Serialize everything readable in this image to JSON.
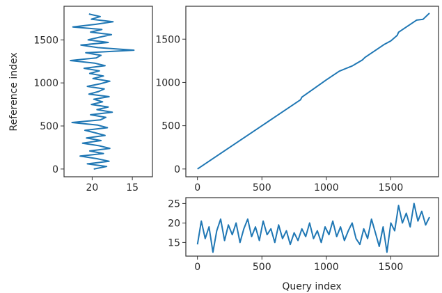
{
  "colors": {
    "series": "#1f77b4",
    "axis": "#333333",
    "background": "#ffffff"
  },
  "chart_data": [
    {
      "id": "left",
      "type": "line",
      "orientation": "vertical",
      "title": "",
      "xlabel": "",
      "ylabel": "Reference index",
      "xlim": [
        12.5,
        23.5
      ],
      "ylim": [
        -90,
        1890
      ],
      "x_inverted": true,
      "xticks": [
        20,
        15
      ],
      "yticks": [
        0,
        500,
        1000,
        1500
      ],
      "grid": false,
      "series": [
        {
          "y": [
            0,
            30,
            60,
            90,
            120,
            150,
            180,
            210,
            240,
            270,
            300,
            330,
            360,
            390,
            420,
            450,
            480,
            510,
            540,
            570,
            600,
            630,
            660,
            690,
            720,
            750,
            780,
            810,
            840,
            870,
            900,
            930,
            960,
            990,
            1020,
            1050,
            1080,
            1110,
            1140,
            1170,
            1200,
            1230,
            1260,
            1290,
            1320,
            1350,
            1380,
            1410,
            1440,
            1470,
            1500,
            1530,
            1560,
            1590,
            1620,
            1650,
            1680,
            1710,
            1740,
            1770,
            1800
          ],
          "x": [
            19.8,
            18.2,
            20.6,
            17.9,
            19.4,
            21.5,
            18.6,
            20.3,
            17.8,
            19.1,
            21.2,
            18.9,
            20.7,
            18.4,
            19.6,
            20.9,
            18.1,
            19.3,
            22.5,
            19.0,
            18.3,
            20.2,
            17.5,
            19.4,
            18.0,
            20.1,
            18.7,
            19.8,
            17.9,
            20.4,
            19.2,
            18.5,
            20.6,
            19.0,
            17.8,
            19.9,
            18.6,
            20.3,
            19.1,
            21.0,
            18.4,
            19.7,
            22.7,
            19.5,
            18.9,
            20.8,
            14.8,
            19.3,
            21.4,
            18.0,
            20.5,
            19.1,
            17.6,
            20.2,
            18.8,
            22.4,
            19.6,
            17.4,
            20.1,
            19.0,
            20.4
          ]
        }
      ]
    },
    {
      "id": "main",
      "type": "line",
      "title": "",
      "xlabel": "",
      "ylabel": "",
      "xlim": [
        -90,
        1870
      ],
      "ylim": [
        -90,
        1880
      ],
      "xticks": [
        0,
        500,
        1000,
        1500
      ],
      "yticks": [
        0,
        500,
        1000,
        1500
      ],
      "grid": false,
      "series": [
        {
          "x": [
            0,
            200,
            400,
            600,
            800,
            810,
            1000,
            1100,
            1150,
            1200,
            1280,
            1300,
            1400,
            1450,
            1500,
            1550,
            1560,
            1600,
            1700,
            1750,
            1800
          ],
          "y": [
            0,
            200,
            400,
            600,
            800,
            830,
            1030,
            1130,
            1160,
            1190,
            1260,
            1290,
            1390,
            1440,
            1480,
            1545,
            1580,
            1620,
            1720,
            1730,
            1800
          ]
        }
      ]
    },
    {
      "id": "bottom",
      "type": "line",
      "title": "",
      "xlabel": "Query index",
      "ylabel": "",
      "xlim": [
        -90,
        1870
      ],
      "ylim": [
        11.5,
        26.5
      ],
      "xticks": [
        0,
        500,
        1000,
        1500
      ],
      "yticks": [
        15,
        20,
        25
      ],
      "grid": false,
      "series": [
        {
          "x": [
            0,
            30,
            60,
            90,
            120,
            150,
            180,
            210,
            240,
            270,
            300,
            330,
            360,
            390,
            420,
            450,
            480,
            510,
            540,
            570,
            600,
            630,
            660,
            690,
            720,
            750,
            780,
            810,
            840,
            870,
            900,
            930,
            960,
            990,
            1020,
            1050,
            1080,
            1110,
            1140,
            1170,
            1200,
            1230,
            1260,
            1290,
            1320,
            1350,
            1380,
            1410,
            1440,
            1470,
            1500,
            1530,
            1560,
            1590,
            1620,
            1650,
            1680,
            1710,
            1740,
            1770,
            1800
          ],
          "y": [
            14.5,
            20.5,
            16.0,
            19.0,
            12.5,
            18.0,
            21.0,
            15.5,
            19.5,
            17.0,
            20.0,
            15.0,
            18.5,
            21.0,
            16.5,
            19.0,
            15.5,
            20.5,
            17.0,
            18.5,
            15.0,
            19.5,
            16.0,
            18.0,
            14.5,
            17.5,
            15.5,
            18.5,
            16.5,
            20.0,
            16.0,
            18.0,
            15.0,
            19.0,
            17.0,
            20.5,
            16.5,
            19.0,
            15.5,
            18.0,
            20.0,
            16.0,
            14.5,
            18.5,
            16.0,
            21.0,
            17.5,
            14.0,
            19.0,
            12.5,
            20.0,
            18.0,
            24.5,
            20.0,
            22.5,
            19.0,
            25.0,
            20.5,
            23.0,
            19.5,
            21.5
          ]
        }
      ]
    }
  ]
}
